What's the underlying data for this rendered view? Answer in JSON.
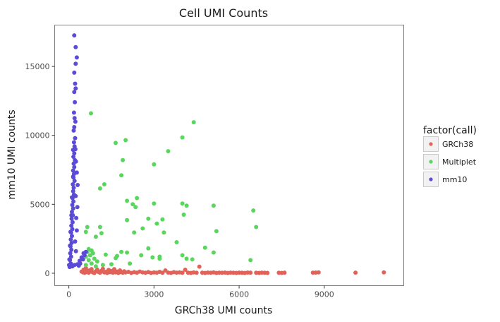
{
  "chart_data": {
    "type": "scatter",
    "title": "Cell UMI Counts",
    "xlabel": "GRCh38 UMI counts",
    "ylabel": "mm10 UMI counts",
    "xlim": [
      -500,
      11800
    ],
    "ylim": [
      -900,
      18000
    ],
    "xticks": [
      0,
      3000,
      6000,
      9000
    ],
    "yticks": [
      0,
      5000,
      10000,
      15000
    ],
    "grid": false,
    "legend": {
      "title": "factor(call)",
      "position": "right"
    },
    "series": [
      {
        "name": "GRCh38",
        "color": "#e06258",
        "points": [
          [
            450,
            120
          ],
          [
            500,
            60
          ],
          [
            520,
            250
          ],
          [
            560,
            30
          ],
          [
            600,
            380
          ],
          [
            620,
            150
          ],
          [
            650,
            80
          ],
          [
            700,
            40
          ],
          [
            720,
            200
          ],
          [
            760,
            120
          ],
          [
            800,
            300
          ],
          [
            850,
            60
          ],
          [
            900,
            20
          ],
          [
            950,
            140
          ],
          [
            1000,
            260
          ],
          [
            1050,
            80
          ],
          [
            1100,
            40
          ],
          [
            1150,
            180
          ],
          [
            1200,
            320
          ],
          [
            1250,
            60
          ],
          [
            1300,
            100
          ],
          [
            1350,
            20
          ],
          [
            1400,
            240
          ],
          [
            1450,
            80
          ],
          [
            1500,
            160
          ],
          [
            1550,
            40
          ],
          [
            1600,
            300
          ],
          [
            1650,
            60
          ],
          [
            1700,
            120
          ],
          [
            1750,
            20
          ],
          [
            1800,
            200
          ],
          [
            1850,
            80
          ],
          [
            1900,
            40
          ],
          [
            1950,
            140
          ],
          [
            2000,
            60
          ],
          [
            2100,
            100
          ],
          [
            2200,
            20
          ],
          [
            2300,
            80
          ],
          [
            2400,
            40
          ],
          [
            2500,
            120
          ],
          [
            2600,
            60
          ],
          [
            2700,
            30
          ],
          [
            2800,
            90
          ],
          [
            2900,
            20
          ],
          [
            3000,
            60
          ],
          [
            3100,
            40
          ],
          [
            3200,
            100
          ],
          [
            3300,
            30
          ],
          [
            3400,
            200
          ],
          [
            3500,
            50
          ],
          [
            3600,
            20
          ],
          [
            3700,
            80
          ],
          [
            3800,
            40
          ],
          [
            3900,
            60
          ],
          [
            4000,
            30
          ],
          [
            4100,
            250
          ],
          [
            4200,
            40
          ],
          [
            4300,
            20
          ],
          [
            4400,
            60
          ],
          [
            4500,
            30
          ],
          [
            4600,
            480
          ],
          [
            4700,
            40
          ],
          [
            4800,
            20
          ],
          [
            4900,
            50
          ],
          [
            5000,
            30
          ],
          [
            5100,
            60
          ],
          [
            5200,
            20
          ],
          [
            5300,
            40
          ],
          [
            5400,
            30
          ],
          [
            5500,
            50
          ],
          [
            5600,
            20
          ],
          [
            5700,
            40
          ],
          [
            5800,
            30
          ],
          [
            5900,
            20
          ],
          [
            6000,
            40
          ],
          [
            6100,
            30
          ],
          [
            6200,
            20
          ],
          [
            6300,
            50
          ],
          [
            6400,
            40
          ],
          [
            6600,
            30
          ],
          [
            6700,
            20
          ],
          [
            6800,
            40
          ],
          [
            6900,
            30
          ],
          [
            7000,
            20
          ],
          [
            7400,
            30
          ],
          [
            7500,
            20
          ],
          [
            7600,
            40
          ],
          [
            8600,
            40
          ],
          [
            8700,
            50
          ],
          [
            8800,
            60
          ],
          [
            10100,
            40
          ],
          [
            11100,
            60
          ]
        ]
      },
      {
        "name": "Multiplet",
        "color": "#5ad55e",
        "points": [
          [
            780,
            11600
          ],
          [
            4400,
            10950
          ],
          [
            4000,
            9850
          ],
          [
            2000,
            9650
          ],
          [
            1650,
            9450
          ],
          [
            3500,
            8850
          ],
          [
            1900,
            8200
          ],
          [
            3000,
            7900
          ],
          [
            1850,
            7100
          ],
          [
            1250,
            6450
          ],
          [
            1100,
            6150
          ],
          [
            2400,
            5450
          ],
          [
            2050,
            5250
          ],
          [
            2250,
            5000
          ],
          [
            3000,
            5050
          ],
          [
            4000,
            5050
          ],
          [
            4150,
            4900
          ],
          [
            5100,
            4900
          ],
          [
            2350,
            4800
          ],
          [
            6500,
            4550
          ],
          [
            4050,
            4250
          ],
          [
            2050,
            3850
          ],
          [
            2800,
            3950
          ],
          [
            3300,
            3900
          ],
          [
            3100,
            3600
          ],
          [
            6600,
            3350
          ],
          [
            650,
            3350
          ],
          [
            1100,
            3350
          ],
          [
            2600,
            3250
          ],
          [
            600,
            3000
          ],
          [
            1150,
            2900
          ],
          [
            2300,
            2950
          ],
          [
            3350,
            2950
          ],
          [
            5200,
            3050
          ],
          [
            950,
            2650
          ],
          [
            3800,
            2250
          ],
          [
            4800,
            1850
          ],
          [
            2800,
            1800
          ],
          [
            5100,
            1500
          ],
          [
            1850,
            1550
          ],
          [
            2050,
            1500
          ],
          [
            4000,
            1300
          ],
          [
            2550,
            1300
          ],
          [
            4350,
            1000
          ],
          [
            4150,
            1050
          ],
          [
            3200,
            1200
          ],
          [
            3200,
            1050
          ],
          [
            2950,
            1150
          ],
          [
            1300,
            1350
          ],
          [
            1700,
            1250
          ],
          [
            1650,
            1100
          ],
          [
            700,
            1750
          ],
          [
            800,
            1650
          ],
          [
            650,
            1550
          ],
          [
            850,
            1450
          ],
          [
            750,
            1300
          ],
          [
            600,
            1200
          ],
          [
            900,
            1050
          ],
          [
            700,
            950
          ],
          [
            1000,
            850
          ],
          [
            800,
            700
          ],
          [
            600,
            600
          ],
          [
            950,
            500
          ],
          [
            1200,
            600
          ],
          [
            1500,
            650
          ],
          [
            2150,
            700
          ],
          [
            6400,
            950
          ]
        ]
      },
      {
        "name": "mm10",
        "color": "#5b4bd6",
        "points": [
          [
            190,
            17250
          ],
          [
            240,
            16400
          ],
          [
            280,
            15650
          ],
          [
            240,
            15200
          ],
          [
            190,
            14550
          ],
          [
            220,
            13750
          ],
          [
            240,
            13400
          ],
          [
            190,
            13150
          ],
          [
            210,
            12400
          ],
          [
            180,
            11650
          ],
          [
            200,
            11250
          ],
          [
            230,
            11000
          ],
          [
            190,
            10600
          ],
          [
            170,
            10350
          ],
          [
            220,
            9800
          ],
          [
            180,
            9500
          ],
          [
            200,
            9200
          ],
          [
            150,
            8950
          ],
          [
            190,
            8700
          ],
          [
            160,
            8450
          ],
          [
            210,
            8200
          ],
          [
            170,
            7950
          ],
          [
            190,
            7700
          ],
          [
            150,
            7450
          ],
          [
            180,
            7200
          ],
          [
            160,
            6950
          ],
          [
            200,
            6700
          ],
          [
            140,
            6450
          ],
          [
            170,
            6200
          ],
          [
            150,
            5950
          ],
          [
            180,
            5700
          ],
          [
            130,
            5450
          ],
          [
            160,
            5200
          ],
          [
            120,
            4950
          ],
          [
            150,
            4700
          ],
          [
            110,
            4450
          ],
          [
            140,
            4200
          ],
          [
            100,
            3950
          ],
          [
            130,
            3700
          ],
          [
            90,
            3450
          ],
          [
            120,
            3200
          ],
          [
            80,
            2950
          ],
          [
            110,
            2700
          ],
          [
            70,
            2450
          ],
          [
            100,
            2200
          ],
          [
            60,
            1950
          ],
          [
            90,
            1700
          ],
          [
            50,
            1450
          ],
          [
            80,
            1200
          ],
          [
            40,
            950
          ],
          [
            70,
            700
          ],
          [
            30,
            450
          ],
          [
            120,
            500
          ],
          [
            200,
            600
          ],
          [
            300,
            650
          ],
          [
            400,
            700
          ],
          [
            500,
            1000
          ],
          [
            550,
            1300
          ],
          [
            600,
            1550
          ],
          [
            520,
            1450
          ],
          [
            450,
            1150
          ],
          [
            380,
            900
          ],
          [
            250,
            1600
          ],
          [
            220,
            2300
          ],
          [
            280,
            3100
          ],
          [
            260,
            4000
          ],
          [
            300,
            4800
          ],
          [
            240,
            5600
          ],
          [
            310,
            6400
          ],
          [
            280,
            7300
          ],
          [
            250,
            8100
          ],
          [
            230,
            9000
          ],
          [
            150,
            7000
          ],
          [
            110,
            5500
          ],
          [
            90,
            4200
          ],
          [
            60,
            3000
          ],
          [
            40,
            2000
          ],
          [
            20,
            1000
          ],
          [
            10,
            600
          ],
          [
            350,
            550
          ]
        ]
      }
    ]
  }
}
